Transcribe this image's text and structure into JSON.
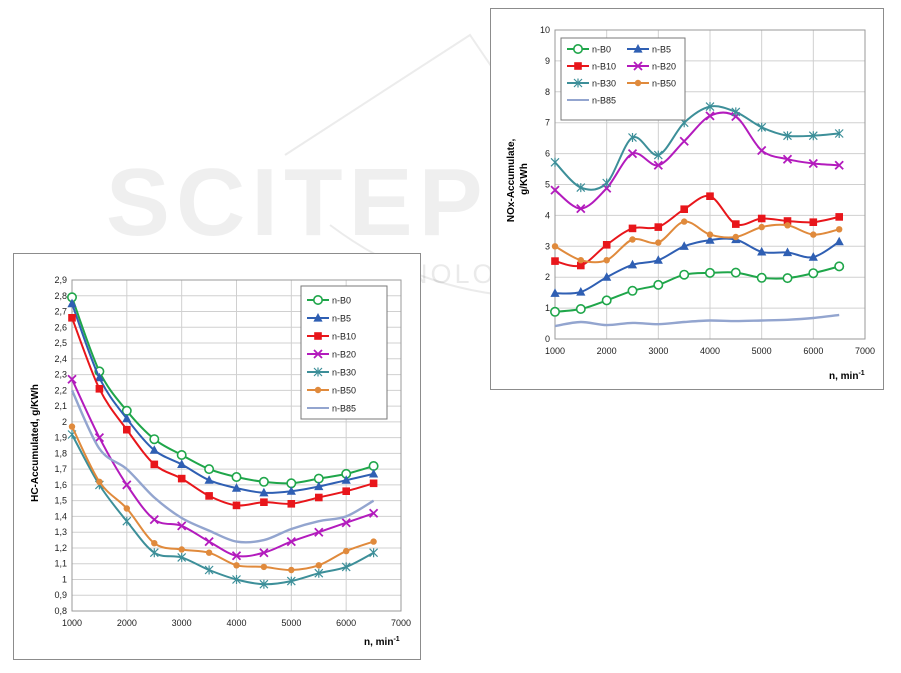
{
  "watermark": {
    "main": "SCITEPRESS",
    "sub": "SCIENCE AND TECHNOLOGY PUBLICATIONS"
  },
  "chart_data": [
    {
      "type": "line",
      "ylabel": "HC-Accumulated, g/KWh",
      "xlabel": "n, min",
      "xlabel_sup": "-1",
      "xlim": [
        1000,
        7000
      ],
      "ylim": [
        0.8,
        2.9
      ],
      "xticks": [
        1000,
        2000,
        3000,
        4000,
        5000,
        6000,
        7000
      ],
      "yticks": [
        0.8,
        0.9,
        1,
        1.1,
        1.2,
        1.3,
        1.4,
        1.5,
        1.6,
        1.7,
        1.8,
        1.9,
        2,
        2.1,
        2.2,
        2.3,
        2.4,
        2.5,
        2.6,
        2.7,
        2.8,
        2.9
      ],
      "ytick_labels": [
        "0,8",
        "0,9",
        "1",
        "1,1",
        "1,2",
        "1,3",
        "1,4",
        "1,5",
        "1,6",
        "1,7",
        "1,8",
        "1,9",
        "2",
        "2,1",
        "2,2",
        "2,3",
        "2,4",
        "2,5",
        "2,6",
        "2,7",
        "2,8",
        "2,9"
      ],
      "grid": true,
      "legend_position": "top-right",
      "legend_columns": 1,
      "x": [
        1000,
        1500,
        2000,
        2500,
        3000,
        3500,
        4000,
        4500,
        5000,
        5500,
        6000,
        6500
      ],
      "series": [
        {
          "name": "n-B0",
          "color": "#1fa64a",
          "marker": "circle-open",
          "values": [
            2.79,
            2.32,
            2.07,
            1.89,
            1.79,
            1.7,
            1.65,
            1.62,
            1.61,
            1.64,
            1.67,
            1.72
          ]
        },
        {
          "name": "n-B5",
          "color": "#2f5fb3",
          "marker": "triangle",
          "values": [
            2.75,
            2.28,
            2.02,
            1.82,
            1.73,
            1.63,
            1.58,
            1.55,
            1.56,
            1.59,
            1.63,
            1.67
          ]
        },
        {
          "name": "n-B10",
          "color": "#e8161b",
          "marker": "square",
          "values": [
            2.66,
            2.21,
            1.95,
            1.73,
            1.64,
            1.53,
            1.47,
            1.49,
            1.48,
            1.52,
            1.56,
            1.61
          ]
        },
        {
          "name": "n-B20",
          "color": "#b31bbd",
          "marker": "x",
          "values": [
            2.27,
            1.9,
            1.6,
            1.38,
            1.34,
            1.24,
            1.15,
            1.17,
            1.24,
            1.3,
            1.36,
            1.42
          ]
        },
        {
          "name": "n-B30",
          "color": "#3d8f99",
          "marker": "star",
          "values": [
            1.92,
            1.6,
            1.37,
            1.17,
            1.14,
            1.06,
            1.0,
            0.97,
            0.99,
            1.04,
            1.08,
            1.17
          ]
        },
        {
          "name": "n-B50",
          "color": "#e08a3c",
          "marker": "dot",
          "values": [
            1.97,
            1.62,
            1.45,
            1.23,
            1.19,
            1.17,
            1.09,
            1.08,
            1.06,
            1.09,
            1.18,
            1.24
          ]
        },
        {
          "name": "n-B85",
          "color": "#93a5cf",
          "marker": "none",
          "values": [
            2.2,
            1.83,
            1.7,
            1.52,
            1.39,
            1.31,
            1.24,
            1.25,
            1.32,
            1.37,
            1.4,
            1.5
          ]
        }
      ]
    },
    {
      "type": "line",
      "ylabel_line1": "NOx-Accumulate,",
      "ylabel_line2": "g/KWh",
      "xlabel": "n, min",
      "xlabel_sup": "-1",
      "xlim": [
        1000,
        7000
      ],
      "ylim": [
        0,
        10
      ],
      "xticks": [
        1000,
        2000,
        3000,
        4000,
        5000,
        6000,
        7000
      ],
      "yticks": [
        0,
        1,
        2,
        3,
        4,
        5,
        6,
        7,
        8,
        9,
        10
      ],
      "ytick_labels": [
        "0",
        "1",
        "2",
        "3",
        "4",
        "5",
        "6",
        "7",
        "8",
        "9",
        "10"
      ],
      "grid": true,
      "legend_position": "top-left",
      "legend_columns": 2,
      "x": [
        1000,
        1500,
        2000,
        2500,
        3000,
        3500,
        4000,
        4500,
        5000,
        5500,
        6000,
        6500
      ],
      "series": [
        {
          "name": "n-B0",
          "color": "#1fa64a",
          "marker": "circle-open",
          "values": [
            0.88,
            0.97,
            1.25,
            1.56,
            1.75,
            2.08,
            2.14,
            2.15,
            1.98,
            1.97,
            2.13,
            2.35
          ]
        },
        {
          "name": "n-B5",
          "color": "#2f5fb3",
          "marker": "triangle",
          "values": [
            1.48,
            1.52,
            2.0,
            2.4,
            2.55,
            3.0,
            3.2,
            3.22,
            2.82,
            2.8,
            2.65,
            3.15
          ]
        },
        {
          "name": "n-B10",
          "color": "#e8161b",
          "marker": "square",
          "values": [
            2.52,
            2.38,
            3.05,
            3.58,
            3.62,
            4.2,
            4.62,
            3.72,
            3.9,
            3.82,
            3.78,
            3.95
          ]
        },
        {
          "name": "n-B20",
          "color": "#b31bbd",
          "marker": "x",
          "values": [
            4.82,
            4.22,
            4.88,
            6.0,
            5.62,
            6.4,
            7.22,
            7.2,
            6.1,
            5.82,
            5.68,
            5.62
          ]
        },
        {
          "name": "n-B30",
          "color": "#3d8f99",
          "marker": "star",
          "values": [
            5.72,
            4.9,
            5.05,
            6.52,
            5.95,
            7.0,
            7.52,
            7.35,
            6.85,
            6.58,
            6.58,
            6.65
          ]
        },
        {
          "name": "n-B50",
          "color": "#e08a3c",
          "marker": "dot",
          "values": [
            3.0,
            2.55,
            2.55,
            3.22,
            3.12,
            3.8,
            3.38,
            3.3,
            3.62,
            3.68,
            3.38,
            3.55
          ]
        },
        {
          "name": "n-B85",
          "color": "#93a5cf",
          "marker": "none",
          "values": [
            0.42,
            0.55,
            0.45,
            0.52,
            0.48,
            0.55,
            0.6,
            0.58,
            0.6,
            0.62,
            0.68,
            0.78
          ]
        }
      ]
    }
  ]
}
